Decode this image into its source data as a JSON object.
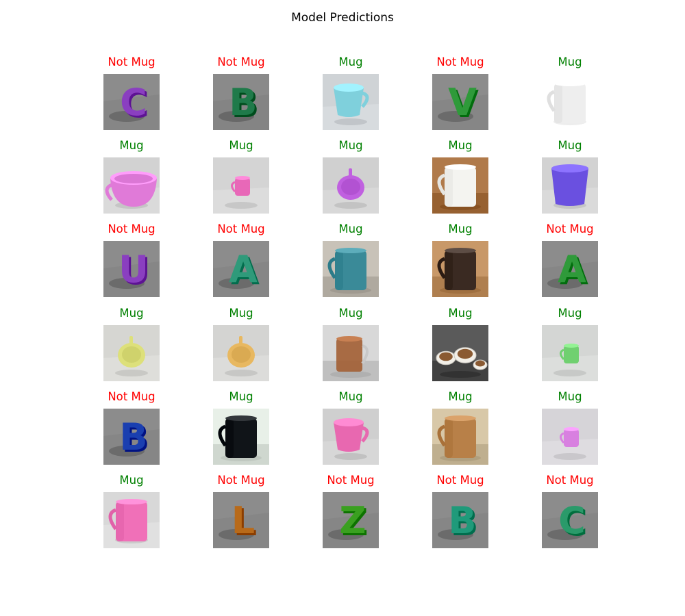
{
  "title": "Model Predictions",
  "colors": {
    "mug": "#008000",
    "not_mug": "#ff0000"
  },
  "chart_data": {
    "type": "table",
    "title": "Model Predictions",
    "rows": 6,
    "cols": 5,
    "cells": [
      {
        "label": "Not Mug",
        "pred": "not_mug",
        "scene": "letter",
        "shape": "C",
        "color": "#8a3fc0",
        "bg": "#8c8c8c"
      },
      {
        "label": "Not Mug",
        "pred": "not_mug",
        "scene": "letter",
        "shape": "B",
        "color": "#1f7a4a",
        "bg": "#8a8a8a"
      },
      {
        "label": "Mug",
        "pred": "mug",
        "scene": "mug",
        "shape": "cup",
        "color": "#7fd0dc",
        "bg": "#cfd3d6"
      },
      {
        "label": "Not Mug",
        "pred": "not_mug",
        "scene": "letter",
        "shape": "V",
        "color": "#2f9a3a",
        "bg": "#8c8c8c"
      },
      {
        "label": "Mug",
        "pred": "mug",
        "scene": "mug",
        "shape": "mug",
        "color": "#eeeeee",
        "bg": "#ffffff"
      },
      {
        "label": "Mug",
        "pred": "mug",
        "scene": "mug",
        "shape": "bowl",
        "color": "#e07ad8",
        "bg": "#d2d2d2"
      },
      {
        "label": "Mug",
        "pred": "mug",
        "scene": "mug",
        "shape": "small",
        "color": "#e868b8",
        "bg": "#d4d4d4"
      },
      {
        "label": "Mug",
        "pred": "mug",
        "scene": "mug",
        "shape": "top",
        "color": "#c060e0",
        "bg": "#d0d0d0"
      },
      {
        "label": "Mug",
        "pred": "mug",
        "scene": "photo",
        "shape": "mug",
        "color": "#f4f4f0",
        "bg": "#b07a4a"
      },
      {
        "label": "Mug",
        "pred": "mug",
        "scene": "mug",
        "shape": "tumbler",
        "color": "#6a50e0",
        "bg": "#d2d2d2"
      },
      {
        "label": "Not Mug",
        "pred": "not_mug",
        "scene": "letter",
        "shape": "U",
        "color": "#8a3fc0",
        "bg": "#8c8c8c"
      },
      {
        "label": "Not Mug",
        "pred": "not_mug",
        "scene": "letter",
        "shape": "A",
        "color": "#2f9a7a",
        "bg": "#8c8c8c"
      },
      {
        "label": "Mug",
        "pred": "mug",
        "scene": "photo",
        "shape": "mug",
        "color": "#3a8a98",
        "bg": "#c8c2b8"
      },
      {
        "label": "Mug",
        "pred": "mug",
        "scene": "photo",
        "shape": "mug",
        "color": "#3a2a22",
        "bg": "#c89868"
      },
      {
        "label": "Not Mug",
        "pred": "not_mug",
        "scene": "letter",
        "shape": "A",
        "color": "#2f9a3a",
        "bg": "#8c8c8c"
      },
      {
        "label": "Mug",
        "pred": "mug",
        "scene": "mug",
        "shape": "top",
        "color": "#dde07a",
        "bg": "#d6d6d2"
      },
      {
        "label": "Mug",
        "pred": "mug",
        "scene": "mug",
        "shape": "top",
        "color": "#e8b860",
        "bg": "#d4d4d2"
      },
      {
        "label": "Mug",
        "pred": "mug",
        "scene": "photo",
        "shape": "glass",
        "color": "#a0582a",
        "bg": "#d8d8d8"
      },
      {
        "label": "Mug",
        "pred": "mug",
        "scene": "photo",
        "shape": "cups",
        "color": "#f2efe8",
        "bg": "#5a5a5a"
      },
      {
        "label": "Mug",
        "pred": "mug",
        "scene": "mug",
        "shape": "small",
        "color": "#70d070",
        "bg": "#d4d6d4"
      },
      {
        "label": "Not Mug",
        "pred": "not_mug",
        "scene": "letter",
        "shape": "B",
        "color": "#1a3fb0",
        "bg": "#8c8c8c"
      },
      {
        "label": "Mug",
        "pred": "mug",
        "scene": "photo",
        "shape": "mug",
        "color": "#101418",
        "bg": "#e8f0e8"
      },
      {
        "label": "Mug",
        "pred": "mug",
        "scene": "mug",
        "shape": "cup",
        "color": "#e868b0",
        "bg": "#cfcfcf"
      },
      {
        "label": "Mug",
        "pred": "mug",
        "scene": "photo",
        "shape": "mug",
        "color": "#b88048",
        "bg": "#d8c8a8"
      },
      {
        "label": "Mug",
        "pred": "mug",
        "scene": "mug",
        "shape": "small",
        "color": "#d880e0",
        "bg": "#d6d4d8"
      },
      {
        "label": "Mug",
        "pred": "mug",
        "scene": "mug",
        "shape": "mug",
        "color": "#f070b8",
        "bg": "#d8d8d8"
      },
      {
        "label": "Not Mug",
        "pred": "not_mug",
        "scene": "letter",
        "shape": "L",
        "color": "#b86a1a",
        "bg": "#8c8c8c"
      },
      {
        "label": "Not Mug",
        "pred": "not_mug",
        "scene": "letter",
        "shape": "Z",
        "color": "#3aa020",
        "bg": "#8c8c8c"
      },
      {
        "label": "Not Mug",
        "pred": "not_mug",
        "scene": "letter",
        "shape": "B",
        "color": "#1f9a7a",
        "bg": "#8c8c8c"
      },
      {
        "label": "Not Mug",
        "pred": "not_mug",
        "scene": "letter",
        "shape": "C",
        "color": "#2a9a6a",
        "bg": "#8c8c8c"
      }
    ]
  }
}
